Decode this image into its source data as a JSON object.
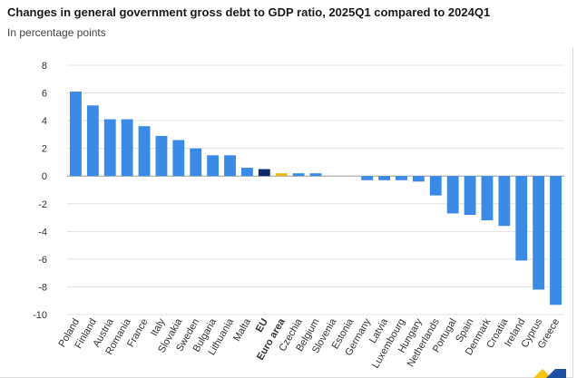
{
  "header": {
    "title": "Changes in general government gross debt to GDP ratio, 2025Q1 compared to 2024Q1",
    "subtitle": "In percentage points"
  },
  "colors": {
    "bar_default": "#3b8ae6",
    "bar_eu": "#0e2a6b",
    "bar_euro_area": "#e5b818",
    "grid": "#e3e3e3",
    "axis": "#9a9a9a"
  },
  "chart_data": {
    "type": "bar",
    "ylim": [
      -10,
      8
    ],
    "yticks": [
      8,
      6,
      4,
      2,
      0,
      -2,
      -4,
      -6,
      -8,
      -10
    ],
    "grid": true,
    "categories": [
      "Poland",
      "Finland",
      "Austria",
      "Romania",
      "France",
      "Italy",
      "Slovakia",
      "Sweden",
      "Bulgaria",
      "Lithuania",
      "Malta",
      "EU",
      "Euro area",
      "Czechia",
      "Belgium",
      "Slovenia",
      "Estonia",
      "Germany",
      "Latvia",
      "Luxembourg",
      "Hungary",
      "Netherlands",
      "Portugal",
      "Spain",
      "Denmark",
      "Croatia",
      "Ireland",
      "Cyprus",
      "Greece"
    ],
    "values": [
      6.1,
      5.1,
      4.1,
      4.1,
      3.6,
      2.9,
      2.6,
      2.0,
      1.5,
      1.5,
      0.6,
      0.5,
      0.2,
      0.2,
      0.2,
      0.0,
      0.0,
      -0.3,
      -0.3,
      -0.3,
      -0.4,
      -1.4,
      -2.7,
      -2.8,
      -3.2,
      -3.6,
      -6.1,
      -8.2,
      -9.3
    ],
    "highlight": {
      "EU": "bar_eu",
      "Euro area": "bar_euro_area"
    }
  }
}
